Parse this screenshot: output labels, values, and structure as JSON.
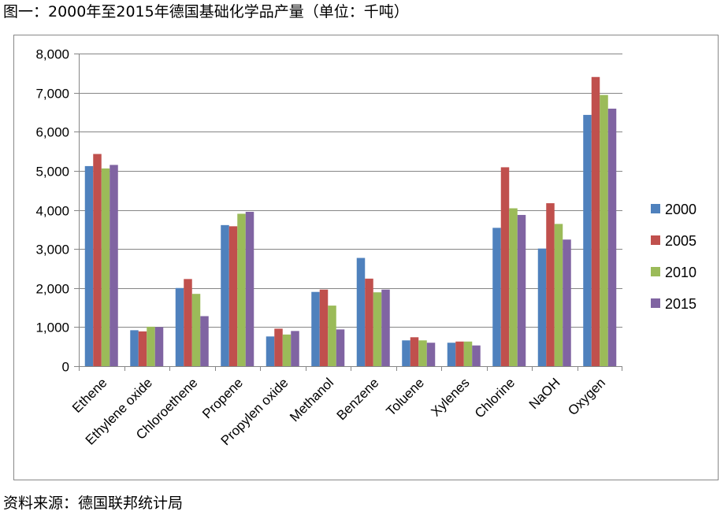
{
  "header": {
    "title": "图一：2000年至2015年德国基础化学品产量（单位：千吨）"
  },
  "footer": {
    "source": "资料来源：德国联邦统计局"
  },
  "colors": {
    "2000": "#4F81BD",
    "2005": "#C0504D",
    "2010": "#9BBB59",
    "2015": "#8064A2",
    "grid": "#868686",
    "axis": "#868686"
  },
  "chart_data": {
    "type": "bar",
    "title": "图一：2000年至2015年德国基础化学品产量（单位：千吨）",
    "xlabel": "",
    "ylabel": "",
    "ylim": [
      0,
      8000
    ],
    "yticks": [
      0,
      1000,
      2000,
      3000,
      4000,
      5000,
      6000,
      7000,
      8000
    ],
    "ytick_labels": [
      "0",
      "1,000",
      "2,000",
      "3,000",
      "4,000",
      "5,000",
      "6,000",
      "7,000",
      "8,000"
    ],
    "grid": true,
    "legend_position": "right",
    "categories": [
      "Ethene",
      "Ethylene oxide",
      "Chloroethene",
      "Propene",
      "Propylen oxide",
      "Methanol",
      "Benzene",
      "Toluene",
      "Xylenes",
      "Chlorine",
      "NaOH",
      "Oxygen"
    ],
    "series": [
      {
        "name": "2000",
        "values": [
          5120,
          920,
          2000,
          3610,
          760,
          1900,
          2770,
          660,
          600,
          3540,
          3010,
          6430
        ]
      },
      {
        "name": "2005",
        "values": [
          5430,
          890,
          2230,
          3580,
          960,
          1960,
          2240,
          740,
          630,
          5090,
          4170,
          7400
        ]
      },
      {
        "name": "2010",
        "values": [
          5060,
          1010,
          1850,
          3900,
          810,
          1550,
          1890,
          660,
          630,
          4040,
          3640,
          6940
        ]
      },
      {
        "name": "2015",
        "values": [
          5150,
          1000,
          1280,
          3950,
          900,
          940,
          1960,
          600,
          530,
          3870,
          3240,
          6590
        ]
      }
    ]
  }
}
